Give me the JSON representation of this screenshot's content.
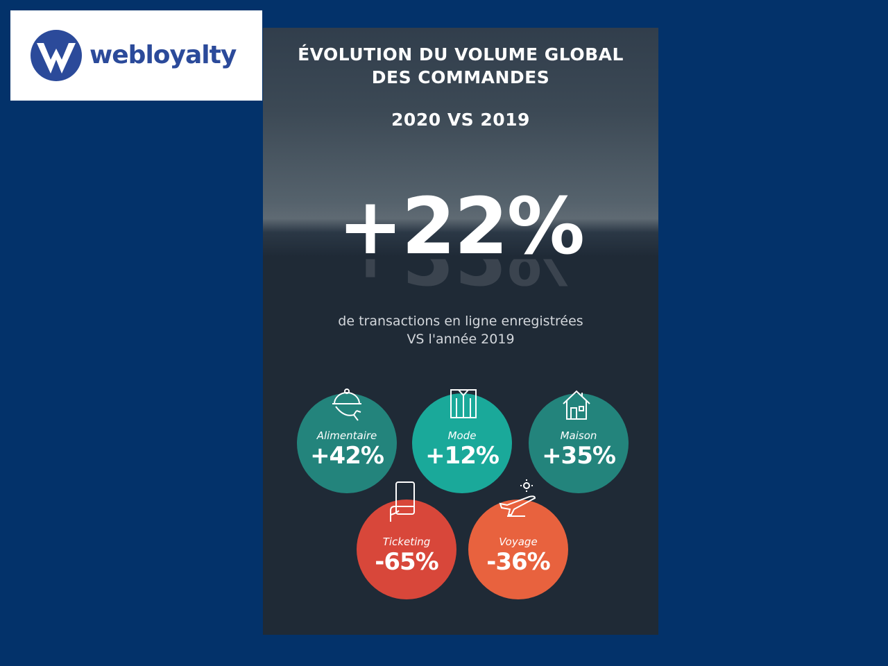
{
  "logo": {
    "text": "webloyalty",
    "mark": "webloyalty-w-logo",
    "color": "#2b4a9a"
  },
  "card": {
    "title_lines": [
      "ÉVOLUTION DU VOLUME GLOBAL",
      "DES COMMANDES"
    ],
    "subtitle": "2020 VS 2019",
    "headline": "+22%",
    "description_lines": [
      "de transactions en ligne enregistrées",
      "VS l'année 2019"
    ]
  },
  "categories": [
    {
      "label": "Alimentaire",
      "value": "+42%",
      "icon": "cloche-hand-icon",
      "color": "#23847c"
    },
    {
      "label": "Mode",
      "value": "+12%",
      "icon": "shirt-icon",
      "color": "#1aa99a"
    },
    {
      "label": "Maison",
      "value": "+35%",
      "icon": "house-icon",
      "color": "#23847c"
    },
    {
      "label": "Ticketing",
      "value": "-65%",
      "icon": "phone-hand-icon",
      "color": "#d8473a"
    },
    {
      "label": "Voyage",
      "value": "-36%",
      "icon": "plane-sun-icon",
      "color": "#e8623e"
    }
  ]
}
